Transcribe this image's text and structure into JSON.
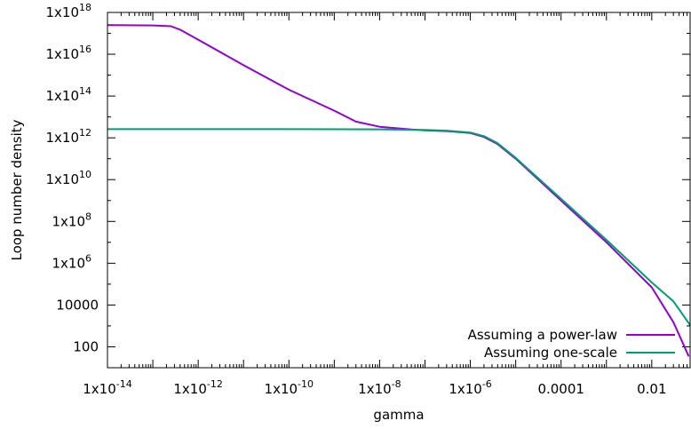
{
  "chart_data": {
    "type": "line",
    "title": "",
    "xlabel": "gamma",
    "ylabel": "Loop number density",
    "x_scale": "log",
    "y_scale": "log",
    "xlim": [
      1e-14,
      0.07
    ],
    "ylim": [
      10,
      1e+18
    ],
    "grid": false,
    "legend_position": "bottom-right",
    "x_ticks": [
      {
        "value": 1e-14,
        "base": "1x10",
        "exp": "-14"
      },
      {
        "value": 1e-12,
        "base": "1x10",
        "exp": "-12"
      },
      {
        "value": 1e-10,
        "base": "1x10",
        "exp": "-10"
      },
      {
        "value": 1e-08,
        "base": "1x10",
        "exp": "-8"
      },
      {
        "value": 1e-06,
        "base": "1x10",
        "exp": "-6"
      },
      {
        "value": 0.0001,
        "base": "0.0001",
        "exp": ""
      },
      {
        "value": 0.01,
        "base": "0.01",
        "exp": ""
      }
    ],
    "y_ticks": [
      {
        "value": 100,
        "base": "100",
        "exp": ""
      },
      {
        "value": 10000,
        "base": "10000",
        "exp": ""
      },
      {
        "value": 1000000.0,
        "base": "1x10",
        "exp": "6"
      },
      {
        "value": 100000000.0,
        "base": "1x10",
        "exp": "8"
      },
      {
        "value": 10000000000.0,
        "base": "1x10",
        "exp": "10"
      },
      {
        "value": 1000000000000.0,
        "base": "1x10",
        "exp": "12"
      },
      {
        "value": 100000000000000.0,
        "base": "1x10",
        "exp": "14"
      },
      {
        "value": 1e+16,
        "base": "1x10",
        "exp": "16"
      },
      {
        "value": 1e+18,
        "base": "1x10",
        "exp": "18"
      }
    ],
    "series": [
      {
        "name": "Assuming a power-law",
        "color": "#9400d3",
        "points": [
          [
            1e-14,
            2.5e+17
          ],
          [
            1e-13,
            2.4e+17
          ],
          [
            2.5e-13,
            2.2e+17
          ],
          [
            4e-13,
            1.5e+17
          ],
          [
            1e-12,
            5e+16
          ],
          [
            1e-11,
            3000000000000000.0
          ],
          [
            1e-10,
            200000000000000.0
          ],
          [
            1e-09,
            20000000000000.0
          ],
          [
            3e-09,
            6000000000000.0
          ],
          [
            1e-08,
            3400000000000.0
          ],
          [
            5e-08,
            2500000000000.0
          ],
          [
            1e-07,
            2300000000000.0
          ],
          [
            3e-07,
            2100000000000.0
          ],
          [
            1e-06,
            1700000000000.0
          ],
          [
            2e-06,
            1100000000000.0
          ],
          [
            4e-06,
            500000000000.0
          ],
          [
            1e-05,
            100000000000.0
          ],
          [
            0.0001,
            1000000000.0
          ],
          [
            0.001,
            10000000.0
          ],
          [
            0.01,
            70000.0
          ],
          [
            0.03,
            1500.0
          ],
          [
            0.05,
            130
          ],
          [
            0.065,
            35
          ]
        ]
      },
      {
        "name": "Assuming one-scale",
        "color": "#009e73",
        "points": [
          [
            1e-14,
            2600000000000.0
          ],
          [
            1e-10,
            2600000000000.0
          ],
          [
            1e-08,
            2550000000000.0
          ],
          [
            1e-07,
            2400000000000.0
          ],
          [
            3e-07,
            2200000000000.0
          ],
          [
            1e-06,
            1800000000000.0
          ],
          [
            2e-06,
            1200000000000.0
          ],
          [
            4e-06,
            550000000000.0
          ],
          [
            1e-05,
            110000000000.0
          ],
          [
            0.0001,
            1200000000.0
          ],
          [
            0.001,
            13000000.0
          ],
          [
            0.01,
            120000.0
          ],
          [
            0.03,
            15000.0
          ],
          [
            0.07,
            1100.0
          ]
        ]
      }
    ]
  }
}
